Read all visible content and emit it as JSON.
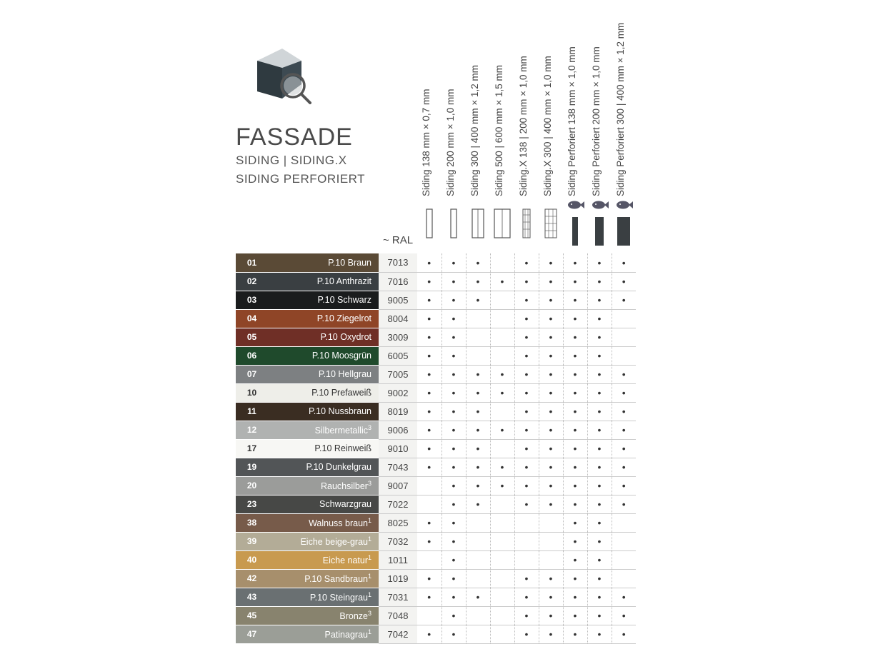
{
  "header": {
    "title": "FASSADE",
    "subtitle1": "SIDING | SIDING.X",
    "subtitle2": "SIDING PERFORIERT"
  },
  "ral_label": "~ RAL",
  "columns": [
    {
      "label": "Siding 138 mm × 0,7 mm",
      "icon": "siding-narrow",
      "fish": false
    },
    {
      "label": "Siding 200 mm × 1,0 mm",
      "icon": "siding-narrow",
      "fish": false
    },
    {
      "label": "Siding 300 | 400 mm × 1,2 mm",
      "icon": "siding-med",
      "fish": false
    },
    {
      "label": "Siding 500 | 600 mm × 1,5 mm",
      "icon": "siding-wide",
      "fish": false
    },
    {
      "label": "Siding.X 138 | 200 mm × 1,0 mm",
      "icon": "sidingx-narrow",
      "fish": false
    },
    {
      "label": "Siding.X 300 | 400 mm × 1,0 mm",
      "icon": "sidingx-wide",
      "fish": false
    },
    {
      "label": "Siding Perforiert 138 mm × 1,0 mm",
      "icon": "perf-narrow",
      "fish": true
    },
    {
      "label": "Siding Perforiert 200 mm × 1,0 mm",
      "icon": "perf-med",
      "fish": true
    },
    {
      "label": "Siding Perforiert 300 | 400 mm × 1,2 mm",
      "icon": "perf-wide",
      "fish": true
    }
  ],
  "rows": [
    {
      "num": "01",
      "name": "P.10 Braun",
      "sup": "",
      "bg": "#5a4a36",
      "txt": "light",
      "ral": "7013",
      "dots": [
        1,
        1,
        1,
        0,
        1,
        1,
        1,
        1,
        1
      ]
    },
    {
      "num": "02",
      "name": "P.10 Anthrazit",
      "sup": "",
      "bg": "#3a3f42",
      "txt": "light",
      "ral": "7016",
      "dots": [
        1,
        1,
        1,
        1,
        1,
        1,
        1,
        1,
        1
      ]
    },
    {
      "num": "03",
      "name": "P.10 Schwarz",
      "sup": "",
      "bg": "#1a1c1d",
      "txt": "light",
      "ral": "9005",
      "dots": [
        1,
        1,
        1,
        0,
        1,
        1,
        1,
        1,
        1
      ]
    },
    {
      "num": "04",
      "name": "P.10 Ziegelrot",
      "sup": "",
      "bg": "#8f4527",
      "txt": "light",
      "ral": "8004",
      "dots": [
        1,
        1,
        0,
        0,
        1,
        1,
        1,
        1,
        0
      ]
    },
    {
      "num": "05",
      "name": "P.10 Oxydrot",
      "sup": "",
      "bg": "#6f2f26",
      "txt": "light",
      "ral": "3009",
      "dots": [
        1,
        1,
        0,
        0,
        1,
        1,
        1,
        1,
        0
      ]
    },
    {
      "num": "06",
      "name": "P.10 Moosgrün",
      "sup": "",
      "bg": "#1f4a2c",
      "txt": "light",
      "ral": "6005",
      "dots": [
        1,
        1,
        0,
        0,
        1,
        1,
        1,
        1,
        0
      ]
    },
    {
      "num": "07",
      "name": "P.10 Hellgrau",
      "sup": "",
      "bg": "#7d8082",
      "txt": "light",
      "ral": "7005",
      "dots": [
        1,
        1,
        1,
        1,
        1,
        1,
        1,
        1,
        1
      ]
    },
    {
      "num": "10",
      "name": "P.10 Prefaweiß",
      "sup": "",
      "bg": "#eeeee9",
      "txt": "dark",
      "ral": "9002",
      "dots": [
        1,
        1,
        1,
        1,
        1,
        1,
        1,
        1,
        1
      ]
    },
    {
      "num": "11",
      "name": "P.10 Nussbraun",
      "sup": "",
      "bg": "#3a2d22",
      "txt": "light",
      "ral": "8019",
      "dots": [
        1,
        1,
        1,
        0,
        1,
        1,
        1,
        1,
        1
      ]
    },
    {
      "num": "12",
      "name": "Silbermetallic",
      "sup": "3",
      "bg": "#b0b2b1",
      "txt": "light",
      "ral": "9006",
      "dots": [
        1,
        1,
        1,
        1,
        1,
        1,
        1,
        1,
        1
      ]
    },
    {
      "num": "17",
      "name": "P.10 Reinweiß",
      "sup": "",
      "bg": "#f7f7f4",
      "txt": "dark",
      "ral": "9010",
      "dots": [
        1,
        1,
        1,
        0,
        1,
        1,
        1,
        1,
        1
      ]
    },
    {
      "num": "19",
      "name": "P.10 Dunkelgrau",
      "sup": "",
      "bg": "#525557",
      "txt": "light",
      "ral": "7043",
      "dots": [
        1,
        1,
        1,
        1,
        1,
        1,
        1,
        1,
        1
      ]
    },
    {
      "num": "20",
      "name": "Rauchsilber",
      "sup": "3",
      "bg": "#9b9c9a",
      "txt": "light",
      "ral": "9007",
      "dots": [
        0,
        1,
        1,
        1,
        1,
        1,
        1,
        1,
        1
      ]
    },
    {
      "num": "23",
      "name": "Schwarzgrau",
      "sup": "",
      "bg": "#474846",
      "txt": "light",
      "ral": "7022",
      "dots": [
        0,
        1,
        1,
        0,
        1,
        1,
        1,
        1,
        1
      ]
    },
    {
      "num": "38",
      "name": "Walnuss braun",
      "sup": "1",
      "bg": "#775b4a",
      "txt": "light",
      "ral": "8025",
      "dots": [
        1,
        1,
        0,
        0,
        0,
        0,
        1,
        1,
        0
      ]
    },
    {
      "num": "39",
      "name": "Eiche beige-grau",
      "sup": "1",
      "bg": "#b3ac97",
      "txt": "light",
      "ral": "7032",
      "dots": [
        1,
        1,
        0,
        0,
        0,
        0,
        1,
        1,
        0
      ]
    },
    {
      "num": "40",
      "name": "Eiche natur",
      "sup": "1",
      "bg": "#c89a4f",
      "txt": "light",
      "ral": "1011",
      "dots": [
        0,
        1,
        0,
        0,
        0,
        0,
        1,
        1,
        0
      ]
    },
    {
      "num": "42",
      "name": "P.10 Sandbraun",
      "sup": "1",
      "bg": "#a78f6c",
      "txt": "light",
      "ral": "1019",
      "dots": [
        1,
        1,
        0,
        0,
        1,
        1,
        1,
        1,
        0
      ]
    },
    {
      "num": "43",
      "name": "P.10 Steingrau",
      "sup": "1",
      "bg": "#6a7072",
      "txt": "light",
      "ral": "7031",
      "dots": [
        1,
        1,
        1,
        0,
        1,
        1,
        1,
        1,
        1
      ]
    },
    {
      "num": "45",
      "name": "Bronze",
      "sup": "3",
      "bg": "#88836e",
      "txt": "light",
      "ral": "7048",
      "dots": [
        0,
        1,
        0,
        0,
        1,
        1,
        1,
        1,
        1
      ]
    },
    {
      "num": "47",
      "name": "Patinagrau",
      "sup": "1",
      "bg": "#9b9e97",
      "txt": "light",
      "ral": "7042",
      "dots": [
        1,
        1,
        0,
        0,
        1,
        1,
        1,
        1,
        1
      ]
    }
  ],
  "icon_styles": {
    "rect_stroke": "#555",
    "perf_fill": "#3a3f42",
    "fish_fill": "#556"
  }
}
